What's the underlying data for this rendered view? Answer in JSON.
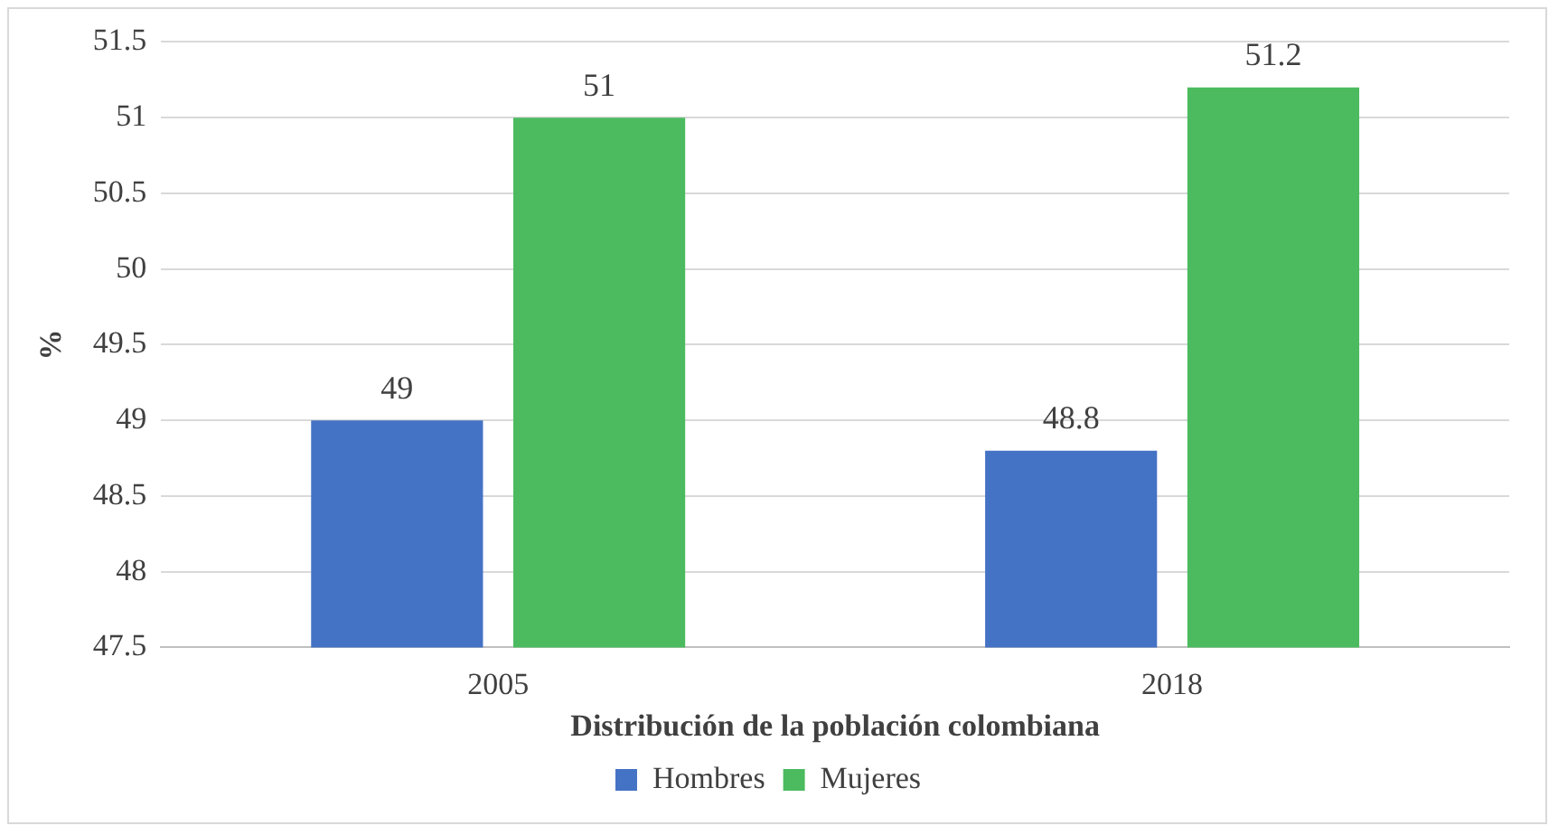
{
  "chart_data": {
    "type": "bar",
    "xlabel": "Distribución de la población colombiana",
    "ylabel": "%",
    "categories": [
      "2005",
      "2018"
    ],
    "series": [
      {
        "name": "Hombres",
        "color": "#4472c4",
        "values": [
          49,
          48.8
        ]
      },
      {
        "name": "Mujeres",
        "color": "#4cbb5f",
        "values": [
          51,
          51.2
        ]
      }
    ],
    "ylim": [
      47.5,
      51.5
    ],
    "yticks": [
      47.5,
      48,
      48.5,
      49,
      49.5,
      50,
      50.5,
      51,
      51.5
    ],
    "grid": "y",
    "legend": "bottom",
    "data_labels": true
  }
}
